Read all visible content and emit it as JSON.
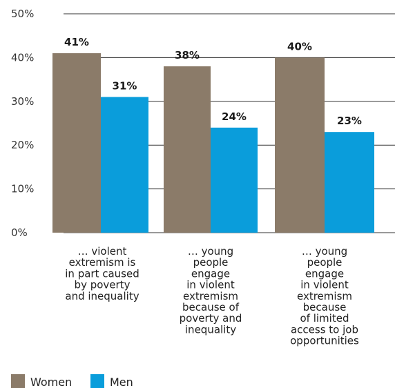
{
  "chart_data": {
    "type": "bar",
    "categories": [
      "… violent extremism is in part caused by poverty and inequality",
      "… young people engage in violent extremism because of poverty and inequality",
      "… young people engage in violent extremism because of limited access to job opportunities"
    ],
    "category_lines": [
      [
        "… violent",
        "extremism is",
        "in part caused",
        "by poverty",
        "and inequality"
      ],
      [
        "… young",
        "people",
        "engage",
        "in violent",
        "extremism",
        "because of",
        "poverty and",
        "inequality"
      ],
      [
        "… young",
        "people",
        "engage",
        "in violent",
        "extremism",
        "because",
        "of limited",
        "access to job",
        "opportunities"
      ]
    ],
    "series": [
      {
        "name": "Women",
        "values": [
          41,
          38,
          40
        ],
        "labels": [
          "41%",
          "38%",
          "40%"
        ],
        "color": "#8b7b69"
      },
      {
        "name": "Men",
        "values": [
          31,
          24,
          23
        ],
        "labels": [
          "31%",
          "24%",
          "23%"
        ],
        "color": "#0a9ddb"
      }
    ],
    "ylim": [
      0,
      50
    ],
    "yticks": [
      0,
      10,
      20,
      30,
      40,
      50
    ],
    "ytick_labels": [
      "0%",
      "10%",
      "20%",
      "30%",
      "40%",
      "50%"
    ],
    "grid": true,
    "gridline_color": "#333333",
    "legend_position": "bottom-left"
  }
}
